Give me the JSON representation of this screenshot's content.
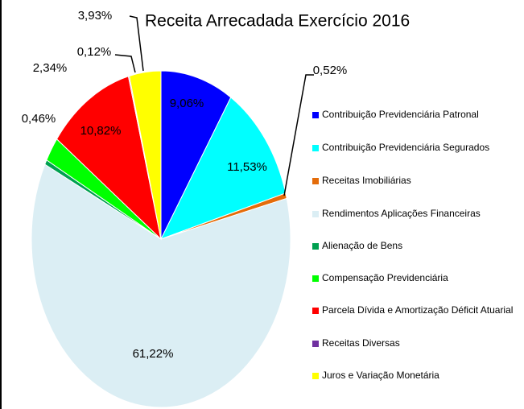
{
  "chart_data": {
    "type": "pie",
    "title": "Receita Arrecadada Exercício 2016",
    "categories": [
      "Contribuição Previdenciária Patronal",
      "Contribuição Previdenciária Segurados",
      "Receitas Imobiliárias",
      "Rendimentos Aplicações Financeiras",
      "Alienação de Bens",
      "Compensação Previdenciária",
      "Parcela Dívida e Amortização Déficit Atuarial",
      "Receitas Diversas",
      "Juros e Variação Monetária"
    ],
    "values": [
      9.06,
      11.53,
      0.52,
      61.22,
      0.46,
      2.34,
      10.82,
      0.12,
      3.93
    ],
    "value_labels": [
      "9,06%",
      "11,53%",
      "0,52%",
      "61,22%",
      "0,46%",
      "2,34%",
      "10,82%",
      "0,12%",
      "3,93%"
    ],
    "colors": [
      "#0000ff",
      "#00ffff",
      "#e46c0a",
      "#dbeef4",
      "#00a050",
      "#00ff00",
      "#ff0000",
      "#7030a0",
      "#ffff00"
    ],
    "legend": "right"
  }
}
